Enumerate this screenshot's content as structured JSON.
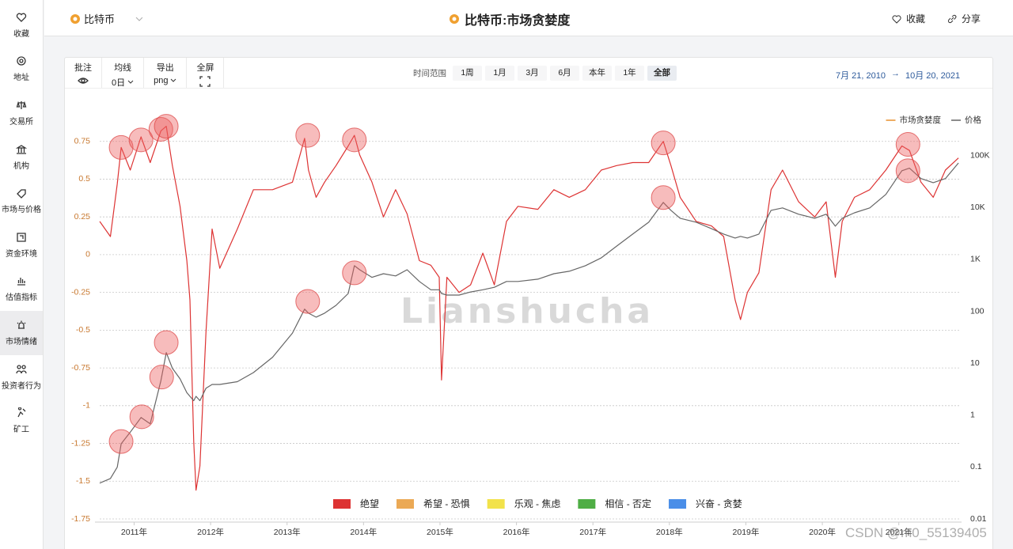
{
  "sidebar": {
    "items": [
      {
        "label": "收藏"
      },
      {
        "label": "地址"
      },
      {
        "label": "交易所"
      },
      {
        "label": "机构"
      },
      {
        "label": "市场与价格"
      },
      {
        "label": "资金环境"
      },
      {
        "label": "估值指标"
      },
      {
        "label": "市场情绪",
        "active": true
      },
      {
        "label": "投资者行为"
      },
      {
        "label": "矿工"
      }
    ]
  },
  "header": {
    "coin": "比特币",
    "title": "比特币:市场贪婪度",
    "actions": [
      "收藏",
      "分享"
    ]
  },
  "toolbar": {
    "tools": [
      {
        "label": "批注"
      },
      {
        "label": "均线",
        "value": "0日"
      },
      {
        "label": "导出",
        "value": "png"
      },
      {
        "label": "全屏"
      }
    ],
    "range_label": "时间范围",
    "ranges": [
      {
        "label": "1周"
      },
      {
        "label": "1月"
      },
      {
        "label": "3月"
      },
      {
        "label": "6月"
      },
      {
        "label": "本年"
      },
      {
        "label": "1年"
      },
      {
        "label": "全部",
        "active": true
      }
    ],
    "start": "7月 21, 2010",
    "arrow": "→",
    "end": "10月 20, 2021"
  },
  "chart_data": {
    "type": "line",
    "watermark": "Lianshucha",
    "legend": "top-right",
    "grid": true,
    "x": [
      2010.55,
      2010.69,
      2010.78,
      2010.83,
      2010.95,
      2011.09,
      2011.21,
      2011.35,
      2011.42,
      2011.5,
      2011.6,
      2011.69,
      2011.73,
      2011.78,
      2011.81,
      2011.86,
      2011.94,
      2012.02,
      2012.12,
      2012.35,
      2012.56,
      2012.81,
      2013.07,
      2013.23,
      2013.28,
      2013.38,
      2013.49,
      2013.64,
      2013.8,
      2013.88,
      2013.95,
      2014.11,
      2014.26,
      2014.42,
      2014.57,
      2014.73,
      2014.88,
      2014.99,
      2015.02,
      2015.09,
      2015.25,
      2015.4,
      2015.56,
      2015.71,
      2015.87,
      2016.02,
      2016.28,
      2016.49,
      2016.69,
      2016.9,
      2017.11,
      2017.31,
      2017.52,
      2017.73,
      2017.92,
      2018.02,
      2018.14,
      2018.35,
      2018.55,
      2018.71,
      2018.86,
      2018.93,
      2019.02,
      2019.17,
      2019.33,
      2019.48,
      2019.69,
      2019.9,
      2020.05,
      2020.17,
      2020.26,
      2020.42,
      2020.62,
      2020.83,
      2021.04,
      2021.14,
      2021.29,
      2021.45,
      2021.61,
      2021.78
    ],
    "xlim": [
      2010.55,
      2021.8
    ],
    "xticks": [
      {
        "value": 2011,
        "label": "2011年"
      },
      {
        "value": 2012,
        "label": "2012年"
      },
      {
        "value": 2013,
        "label": "2013年"
      },
      {
        "value": 2014,
        "label": "2014年"
      },
      {
        "value": 2015,
        "label": "2015年"
      },
      {
        "value": 2016,
        "label": "2016年"
      },
      {
        "value": 2017,
        "label": "2017年"
      },
      {
        "value": 2018,
        "label": "2018年"
      },
      {
        "value": 2019,
        "label": "2019年"
      },
      {
        "value": 2020,
        "label": "2020年"
      },
      {
        "value": 2021,
        "label": "2021年"
      }
    ],
    "ylim": [
      -1.75,
      1
    ],
    "yticks": [
      0.75,
      0.5,
      0.25,
      0,
      -0.25,
      -0.5,
      -0.75,
      -1,
      -1.25,
      -1.5,
      -1.75
    ],
    "y2lim": [
      0.01,
      1000000
    ],
    "y2scale": "log",
    "y2ticks": [
      {
        "value": 100000,
        "label": "100K"
      },
      {
        "value": 10000,
        "label": "10K"
      },
      {
        "value": 1000,
        "label": "1K"
      },
      100,
      10,
      1,
      0.1,
      0.01
    ],
    "series": [
      {
        "name": "市场贪婪度",
        "color": "#e8912e",
        "values": [
          0.22,
          0.12,
          0.47,
          0.71,
          0.56,
          0.78,
          0.61,
          0.82,
          0.85,
          0.59,
          0.32,
          -0.04,
          -0.3,
          -1.24,
          -1.56,
          -1.4,
          -0.51,
          0.17,
          -0.09,
          0.17,
          0.43,
          0.43,
          0.48,
          0.77,
          0.56,
          0.38,
          0.48,
          0.59,
          0.72,
          0.79,
          0.66,
          0.48,
          0.25,
          0.43,
          0.27,
          -0.04,
          -0.07,
          -0.15,
          -0.83,
          -0.15,
          -0.25,
          -0.2,
          0.01,
          -0.2,
          0.22,
          0.32,
          0.3,
          0.43,
          0.38,
          0.43,
          0.56,
          0.59,
          0.61,
          0.61,
          0.75,
          0.59,
          0.38,
          0.22,
          0.19,
          0.12,
          -0.3,
          -0.43,
          -0.25,
          -0.12,
          0.43,
          0.56,
          0.35,
          0.25,
          0.35,
          -0.15,
          0.22,
          0.38,
          0.43,
          0.56,
          0.72,
          0.69,
          0.48,
          0.38,
          0.56,
          0.64
        ],
        "zones": [
          {
            "name": "绝望",
            "color": "#dd3333",
            "max": 0
          },
          {
            "name": "希望 - 恐惧",
            "color": "#eba955",
            "max": 0.25
          },
          {
            "name": "乐观 - 焦虑",
            "color": "#f2e24a",
            "max": 0.5
          },
          {
            "name": "相信 - 否定",
            "color": "#4fae45",
            "max": 0.75
          },
          {
            "name": "兴奋 - 贪婪",
            "color": "#4a8ee8",
            "max": 1
          }
        ]
      },
      {
        "name": "价格",
        "color": "#666666",
        "axis": "y2",
        "values": [
          0.049,
          0.06,
          0.1,
          0.28,
          0.47,
          0.9,
          0.68,
          4.6,
          16,
          8,
          5,
          2.7,
          2.3,
          1.9,
          2.3,
          1.9,
          3.3,
          3.9,
          3.9,
          4.4,
          6.6,
          13,
          38,
          110,
          92,
          77,
          92,
          130,
          220,
          755,
          630,
          450,
          530,
          480,
          630,
          375,
          260,
          260,
          220,
          205,
          205,
          235,
          260,
          290,
          375,
          375,
          415,
          530,
          590,
          755,
          1070,
          1800,
          3070,
          5200,
          12500,
          8800,
          6200,
          5200,
          3900,
          3070,
          2580,
          2770,
          2580,
          3070,
          8800,
          9800,
          7400,
          6200,
          7400,
          4360,
          6200,
          7900,
          9800,
          17800,
          51000,
          57000,
          36000,
          30000,
          36000,
          72000
        ]
      }
    ],
    "highlights": [
      {
        "x": 2010.83,
        "value": 0.71
      },
      {
        "x": 2011.09,
        "value": 0.76
      },
      {
        "x": 2011.35,
        "value": 0.83
      },
      {
        "x": 2011.42,
        "value": 0.85
      },
      {
        "x": 2013.27,
        "value": 0.79
      },
      {
        "x": 2013.88,
        "value": 0.76
      },
      {
        "x": 2017.92,
        "value": 0.74
      },
      {
        "x": 2021.12,
        "value": 0.73
      },
      {
        "x": 2010.83,
        "value": 0.31,
        "axis": "y2"
      },
      {
        "x": 2011.1,
        "value": 0.93,
        "axis": "y2"
      },
      {
        "x": 2011.36,
        "value": 5.4,
        "axis": "y2"
      },
      {
        "x": 2011.42,
        "value": 25,
        "axis": "y2"
      },
      {
        "x": 2013.27,
        "value": 155,
        "axis": "y2"
      },
      {
        "x": 2013.88,
        "value": 550,
        "axis": "y2"
      },
      {
        "x": 2017.92,
        "value": 15500,
        "axis": "y2"
      },
      {
        "x": 2021.12,
        "value": 51000,
        "axis": "y2"
      }
    ]
  },
  "footer_watermark": "CSDN @m0_55139405"
}
